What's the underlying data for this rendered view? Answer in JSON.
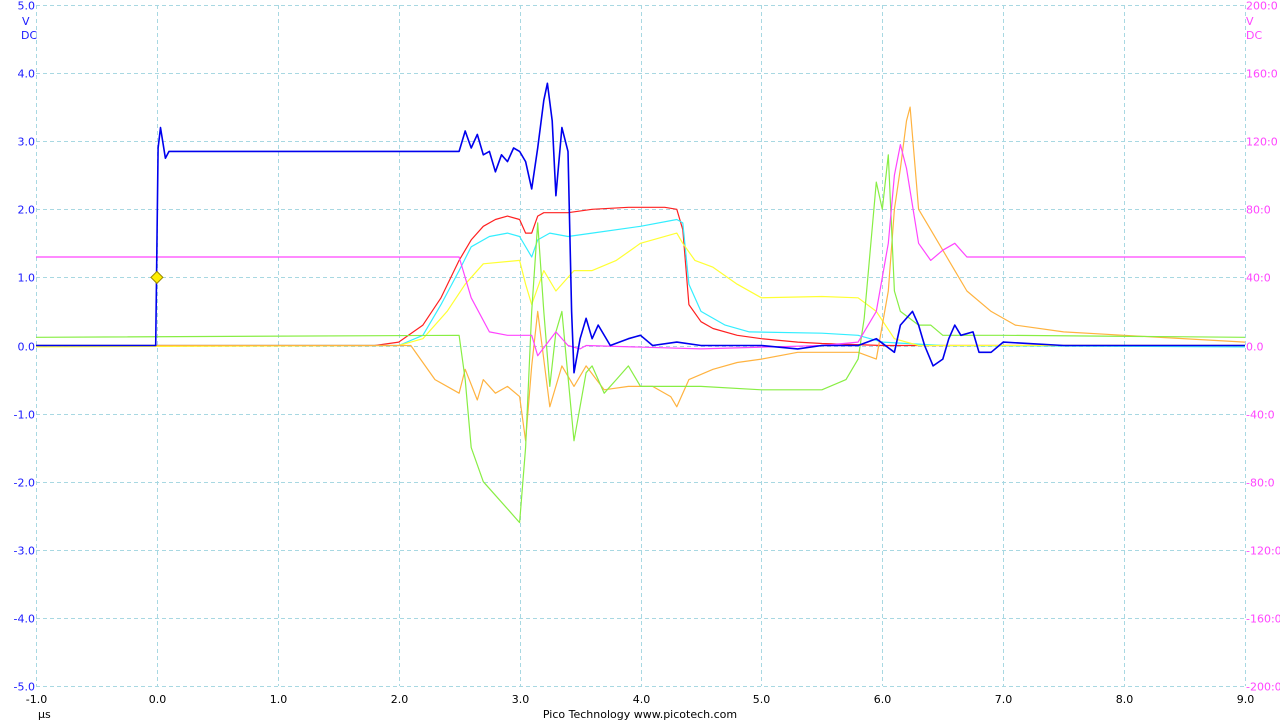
{
  "footer": "Pico Technology  www.picotech.com",
  "chart_data": {
    "type": "line",
    "title": "",
    "grid": true,
    "xlabel": "µs",
    "xlim": [
      -1.0,
      9.0
    ],
    "x_ticks": [
      "-1.0",
      "0.0",
      "1.0",
      "2.0",
      "3.0",
      "4.0",
      "5.0",
      "6.0",
      "7.0",
      "8.0",
      "9.0"
    ],
    "left_axis": {
      "unit": "V",
      "coupling": "DC",
      "color": "#1a1aff",
      "ylim": [
        -5.0,
        5.0
      ],
      "ticks": [
        "5.0",
        "4.0",
        "3.0",
        "2.0",
        "1.0",
        "0.0",
        "-1.0",
        "-2.0",
        "-3.0",
        "-4.0",
        "-5.0"
      ]
    },
    "right_axis": {
      "unit": "V",
      "coupling": "DC",
      "color": "#ff44ff",
      "ylim": [
        -200,
        200
      ],
      "ticks": [
        "200:0",
        "160:0",
        "120:0",
        "80:0",
        "40:0",
        "0.0",
        "-40:0",
        "-80:0",
        "-120:0",
        "-160:0",
        "-200:0"
      ]
    },
    "trigger_marker": {
      "x": 0.0,
      "y": 1.0,
      "color": "#ffee00"
    },
    "series": [
      {
        "color": "#ff2020",
        "axis": "left",
        "points": [
          [
            -1,
            0
          ],
          [
            1.8,
            0
          ],
          [
            2.0,
            0.05
          ],
          [
            2.2,
            0.3
          ],
          [
            2.35,
            0.7
          ],
          [
            2.5,
            1.25
          ],
          [
            2.6,
            1.55
          ],
          [
            2.7,
            1.75
          ],
          [
            2.8,
            1.85
          ],
          [
            2.9,
            1.9
          ],
          [
            3.0,
            1.85
          ],
          [
            3.05,
            1.65
          ],
          [
            3.1,
            1.65
          ],
          [
            3.15,
            1.9
          ],
          [
            3.2,
            1.95
          ],
          [
            3.4,
            1.95
          ],
          [
            3.6,
            2.0
          ],
          [
            3.9,
            2.03
          ],
          [
            4.2,
            2.03
          ],
          [
            4.3,
            2.0
          ],
          [
            4.35,
            1.7
          ],
          [
            4.4,
            0.6
          ],
          [
            4.5,
            0.35
          ],
          [
            4.6,
            0.25
          ],
          [
            4.8,
            0.15
          ],
          [
            5.0,
            0.1
          ],
          [
            5.3,
            0.05
          ],
          [
            5.5,
            0.03
          ],
          [
            6.0,
            0
          ],
          [
            9,
            0
          ]
        ]
      },
      {
        "color": "#33eeff",
        "axis": "left",
        "points": [
          [
            -1,
            0
          ],
          [
            2.0,
            0
          ],
          [
            2.2,
            0.15
          ],
          [
            2.35,
            0.6
          ],
          [
            2.5,
            1.1
          ],
          [
            2.6,
            1.45
          ],
          [
            2.75,
            1.6
          ],
          [
            2.9,
            1.65
          ],
          [
            3.0,
            1.6
          ],
          [
            3.1,
            1.3
          ],
          [
            3.15,
            1.55
          ],
          [
            3.25,
            1.65
          ],
          [
            3.4,
            1.6
          ],
          [
            3.6,
            1.65
          ],
          [
            4.0,
            1.75
          ],
          [
            4.3,
            1.85
          ],
          [
            4.35,
            1.8
          ],
          [
            4.4,
            0.9
          ],
          [
            4.5,
            0.5
          ],
          [
            4.7,
            0.3
          ],
          [
            4.9,
            0.2
          ],
          [
            5.5,
            0.18
          ],
          [
            5.8,
            0.15
          ],
          [
            6.0,
            0.05
          ],
          [
            6.5,
            0
          ],
          [
            9,
            -0.02
          ]
        ]
      },
      {
        "color": "#ffff33",
        "axis": "left",
        "points": [
          [
            -1,
            -0.02
          ],
          [
            2.0,
            0
          ],
          [
            2.2,
            0.1
          ],
          [
            2.4,
            0.5
          ],
          [
            2.55,
            0.9
          ],
          [
            2.7,
            1.2
          ],
          [
            3.0,
            1.25
          ],
          [
            3.05,
            0.9
          ],
          [
            3.1,
            0.6
          ],
          [
            3.2,
            1.1
          ],
          [
            3.3,
            0.8
          ],
          [
            3.45,
            1.1
          ],
          [
            3.6,
            1.1
          ],
          [
            3.8,
            1.25
          ],
          [
            4.0,
            1.5
          ],
          [
            4.3,
            1.65
          ],
          [
            4.35,
            1.5
          ],
          [
            4.45,
            1.25
          ],
          [
            4.6,
            1.15
          ],
          [
            4.8,
            0.9
          ],
          [
            5.0,
            0.7
          ],
          [
            5.5,
            0.72
          ],
          [
            5.8,
            0.7
          ],
          [
            5.95,
            0.5
          ],
          [
            6.1,
            0.1
          ],
          [
            6.3,
            0
          ],
          [
            9,
            0
          ]
        ]
      },
      {
        "color": "#ffb340",
        "axis": "left",
        "points": [
          [
            -1,
            0
          ],
          [
            2.1,
            0
          ],
          [
            2.3,
            -0.5
          ],
          [
            2.5,
            -0.7
          ],
          [
            2.55,
            -0.35
          ],
          [
            2.65,
            -0.8
          ],
          [
            2.7,
            -0.5
          ],
          [
            2.8,
            -0.7
          ],
          [
            2.9,
            -0.6
          ],
          [
            3.0,
            -0.75
          ],
          [
            3.05,
            -1.4
          ],
          [
            3.1,
            -0.3
          ],
          [
            3.15,
            0.5
          ],
          [
            3.25,
            -0.9
          ],
          [
            3.35,
            -0.3
          ],
          [
            3.45,
            -0.6
          ],
          [
            3.55,
            -0.3
          ],
          [
            3.7,
            -0.65
          ],
          [
            3.9,
            -0.6
          ],
          [
            4.1,
            -0.6
          ],
          [
            4.25,
            -0.75
          ],
          [
            4.3,
            -0.9
          ],
          [
            4.4,
            -0.5
          ],
          [
            4.6,
            -0.35
          ],
          [
            4.8,
            -0.25
          ],
          [
            5.0,
            -0.2
          ],
          [
            5.3,
            -0.1
          ],
          [
            5.8,
            -0.1
          ],
          [
            5.95,
            -0.2
          ],
          [
            6.05,
            0.8
          ],
          [
            6.1,
            2.0
          ],
          [
            6.15,
            2.6
          ],
          [
            6.2,
            3.3
          ],
          [
            6.23,
            3.5
          ],
          [
            6.3,
            2.0
          ],
          [
            6.4,
            1.7
          ],
          [
            6.5,
            1.4
          ],
          [
            6.6,
            1.1
          ],
          [
            6.7,
            0.8
          ],
          [
            6.9,
            0.5
          ],
          [
            7.1,
            0.3
          ],
          [
            7.5,
            0.2
          ],
          [
            8.0,
            0.15
          ],
          [
            9,
            0.05
          ]
        ]
      },
      {
        "color": "#88ee44",
        "axis": "left",
        "points": [
          [
            -1,
            0.12
          ],
          [
            2.5,
            0.15
          ],
          [
            2.55,
            -0.5
          ],
          [
            2.6,
            -1.5
          ],
          [
            2.7,
            -2.0
          ],
          [
            2.8,
            -2.2
          ],
          [
            2.9,
            -2.4
          ],
          [
            3.0,
            -2.6
          ],
          [
            3.05,
            -1.5
          ],
          [
            3.1,
            0.5
          ],
          [
            3.15,
            1.8
          ],
          [
            3.2,
            0.5
          ],
          [
            3.25,
            -0.6
          ],
          [
            3.3,
            0.2
          ],
          [
            3.35,
            0.5
          ],
          [
            3.45,
            -1.4
          ],
          [
            3.55,
            -0.4
          ],
          [
            3.6,
            -0.3
          ],
          [
            3.7,
            -0.7
          ],
          [
            3.8,
            -0.5
          ],
          [
            3.9,
            -0.3
          ],
          [
            4.0,
            -0.6
          ],
          [
            4.3,
            -0.6
          ],
          [
            4.5,
            -0.6
          ],
          [
            5.0,
            -0.65
          ],
          [
            5.5,
            -0.65
          ],
          [
            5.7,
            -0.5
          ],
          [
            5.8,
            -0.2
          ],
          [
            5.85,
            0.4
          ],
          [
            5.95,
            2.4
          ],
          [
            6.0,
            2.0
          ],
          [
            6.05,
            2.8
          ],
          [
            6.1,
            0.8
          ],
          [
            6.15,
            0.5
          ],
          [
            6.3,
            0.3
          ],
          [
            6.4,
            0.3
          ],
          [
            6.5,
            0.15
          ],
          [
            7.0,
            0.15
          ],
          [
            9,
            0.12
          ]
        ]
      },
      {
        "color": "#ff44ff",
        "axis": "right",
        "points": [
          [
            -1,
            52
          ],
          [
            2.5,
            52
          ],
          [
            2.6,
            28
          ],
          [
            2.75,
            8
          ],
          [
            2.9,
            6
          ],
          [
            3.1,
            6
          ],
          [
            3.15,
            -6
          ],
          [
            3.3,
            8
          ],
          [
            3.4,
            0
          ],
          [
            3.5,
            -2
          ],
          [
            3.55,
            0
          ],
          [
            4.5,
            -2
          ],
          [
            5.5,
            0
          ],
          [
            5.8,
            2
          ],
          [
            5.95,
            20
          ],
          [
            6.05,
            60
          ],
          [
            6.1,
            100
          ],
          [
            6.15,
            118
          ],
          [
            6.2,
            104
          ],
          [
            6.3,
            60
          ],
          [
            6.4,
            50
          ],
          [
            6.5,
            56
          ],
          [
            6.6,
            60
          ],
          [
            6.7,
            52
          ],
          [
            7.0,
            52
          ],
          [
            9,
            52
          ]
        ]
      },
      {
        "color": "#0000ee",
        "axis": "left",
        "points": [
          [
            -1,
            0
          ],
          [
            -0.01,
            0
          ],
          [
            0.01,
            2.9
          ],
          [
            0.03,
            3.2
          ],
          [
            0.07,
            2.75
          ],
          [
            0.1,
            2.85
          ],
          [
            1.0,
            2.85
          ],
          [
            2.0,
            2.85
          ],
          [
            2.5,
            2.85
          ],
          [
            2.55,
            3.15
          ],
          [
            2.6,
            2.9
          ],
          [
            2.65,
            3.1
          ],
          [
            2.7,
            2.8
          ],
          [
            2.75,
            2.85
          ],
          [
            2.8,
            2.55
          ],
          [
            2.85,
            2.8
          ],
          [
            2.9,
            2.7
          ],
          [
            2.95,
            2.9
          ],
          [
            3.0,
            2.85
          ],
          [
            3.05,
            2.7
          ],
          [
            3.1,
            2.3
          ],
          [
            3.15,
            2.9
          ],
          [
            3.2,
            3.6
          ],
          [
            3.23,
            3.85
          ],
          [
            3.27,
            3.3
          ],
          [
            3.3,
            2.2
          ],
          [
            3.35,
            3.2
          ],
          [
            3.4,
            2.85
          ],
          [
            3.43,
            0.5
          ],
          [
            3.45,
            -0.4
          ],
          [
            3.5,
            0.1
          ],
          [
            3.55,
            0.4
          ],
          [
            3.6,
            0.1
          ],
          [
            3.65,
            0.3
          ],
          [
            3.75,
            0
          ],
          [
            3.9,
            0.1
          ],
          [
            4.0,
            0.15
          ],
          [
            4.1,
            0
          ],
          [
            4.3,
            0.05
          ],
          [
            4.5,
            0
          ],
          [
            5.0,
            0
          ],
          [
            5.3,
            -0.05
          ],
          [
            5.5,
            0
          ],
          [
            5.8,
            0
          ],
          [
            5.95,
            0.1
          ],
          [
            6.1,
            -0.1
          ],
          [
            6.15,
            0.3
          ],
          [
            6.25,
            0.5
          ],
          [
            6.3,
            0.3
          ],
          [
            6.35,
            0
          ],
          [
            6.42,
            -0.3
          ],
          [
            6.5,
            -0.2
          ],
          [
            6.55,
            0.1
          ],
          [
            6.6,
            0.3
          ],
          [
            6.65,
            0.15
          ],
          [
            6.75,
            0.2
          ],
          [
            6.8,
            -0.1
          ],
          [
            6.9,
            -0.1
          ],
          [
            7.0,
            0.05
          ],
          [
            7.5,
            0
          ],
          [
            9,
            0
          ]
        ]
      }
    ]
  }
}
